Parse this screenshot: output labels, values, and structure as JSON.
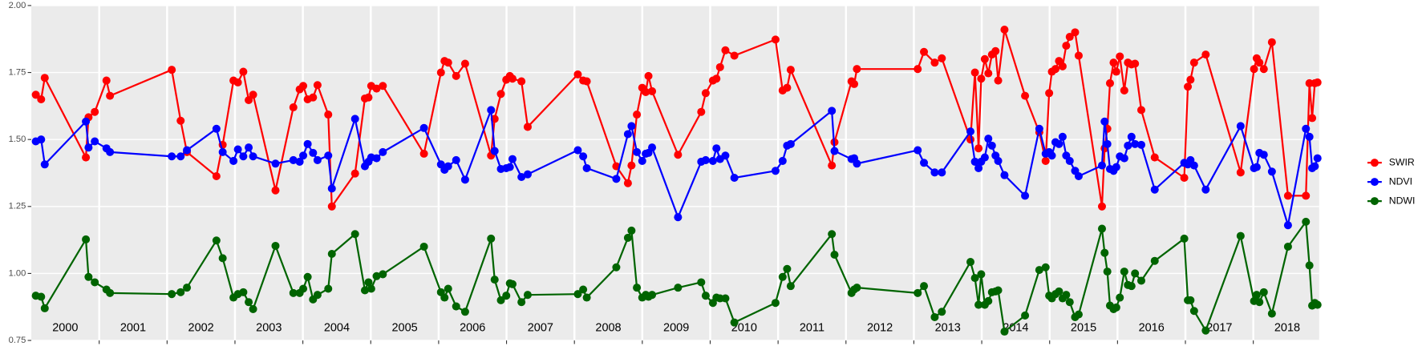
{
  "chart_data": {
    "type": "line",
    "x": [
      2000.066,
      2000.145,
      2000.198,
      2000.804,
      2000.843,
      2000.935,
      2001.107,
      2001.159,
      2002.069,
      2002.2,
      2002.292,
      2002.727,
      2002.819,
      2002.978,
      2003.043,
      2003.123,
      2003.202,
      2003.267,
      2003.597,
      2003.86,
      2003.953,
      2004.005,
      2004.071,
      2004.15,
      2004.216,
      2004.374,
      2004.427,
      2004.769,
      2004.914,
      2004.967,
      2005.007,
      2005.086,
      2005.178,
      2005.784,
      2006.034,
      2006.087,
      2006.14,
      2006.258,
      2006.39,
      2006.772,
      2006.825,
      2006.917,
      2006.996,
      2007.049,
      2007.088,
      2007.22,
      2007.312,
      2008.05,
      2008.129,
      2008.182,
      2008.617,
      2008.788,
      2008.841,
      2008.92,
      2008.999,
      2009.051,
      2009.091,
      2009.144,
      2009.526,
      2009.868,
      2009.934,
      2010.04,
      2010.092,
      2010.145,
      2010.224,
      2010.356,
      2010.962,
      2011.067,
      2011.133,
      2011.186,
      2011.792,
      2011.831,
      2012.082,
      2012.121,
      2012.161,
      2013.057,
      2013.149,
      2013.307,
      2013.412,
      2013.834,
      2013.9,
      2013.953,
      2013.992,
      2014.045,
      2014.097,
      2014.15,
      2014.203,
      2014.242,
      2014.335,
      2014.638,
      2014.848,
      2014.941,
      2014.993,
      2015.033,
      2015.086,
      2015.138,
      2015.191,
      2015.244,
      2015.296,
      2015.375,
      2015.428,
      2015.771,
      2015.81,
      2015.85,
      2015.889,
      2015.942,
      2015.982,
      2016.034,
      2016.1,
      2016.153,
      2016.206,
      2016.258,
      2016.35,
      2016.548,
      2016.983,
      2017.036,
      2017.075,
      2017.128,
      2017.299,
      2017.813,
      2018.011,
      2018.05,
      2018.09,
      2018.155,
      2018.274,
      2018.511,
      2018.775,
      2018.827,
      2018.867,
      2018.906,
      2018.946
    ],
    "series": [
      {
        "name": "SWIR",
        "color": "#ff0000",
        "values": [
          1.667,
          1.65,
          1.73,
          1.433,
          1.583,
          1.603,
          1.72,
          1.663,
          1.76,
          1.57,
          1.453,
          1.363,
          1.48,
          1.72,
          1.713,
          1.753,
          1.647,
          1.667,
          1.31,
          1.62,
          1.687,
          1.7,
          1.65,
          1.657,
          1.703,
          1.593,
          1.25,
          1.373,
          1.653,
          1.657,
          1.7,
          1.69,
          1.7,
          1.447,
          1.75,
          1.793,
          1.787,
          1.737,
          1.783,
          1.44,
          1.577,
          1.67,
          1.723,
          1.737,
          1.727,
          1.717,
          1.547,
          1.743,
          1.72,
          1.717,
          1.4,
          1.337,
          1.403,
          1.593,
          1.693,
          1.677,
          1.737,
          1.68,
          1.443,
          1.603,
          1.673,
          1.72,
          1.727,
          1.77,
          1.833,
          1.813,
          1.873,
          1.683,
          1.693,
          1.76,
          1.403,
          1.49,
          1.717,
          1.707,
          1.763,
          1.763,
          1.827,
          1.787,
          1.803,
          1.5,
          1.75,
          1.467,
          1.727,
          1.8,
          1.747,
          1.817,
          1.83,
          1.72,
          1.91,
          1.663,
          1.527,
          1.42,
          1.673,
          1.753,
          1.763,
          1.793,
          1.773,
          1.85,
          1.883,
          1.9,
          1.813,
          1.25,
          1.467,
          1.54,
          1.71,
          1.787,
          1.753,
          1.81,
          1.683,
          1.787,
          1.78,
          1.783,
          1.61,
          1.433,
          1.357,
          1.697,
          1.723,
          1.787,
          1.817,
          1.377,
          1.763,
          1.803,
          1.787,
          1.763,
          1.863,
          1.29,
          1.29,
          1.71,
          1.58,
          1.71,
          1.713
        ]
      },
      {
        "name": "NDVI",
        "color": "#0000ff",
        "values": [
          1.493,
          1.5,
          1.407,
          1.567,
          1.47,
          1.493,
          1.467,
          1.453,
          1.437,
          1.437,
          1.46,
          1.54,
          1.453,
          1.42,
          1.463,
          1.437,
          1.47,
          1.437,
          1.41,
          1.423,
          1.417,
          1.44,
          1.483,
          1.45,
          1.423,
          1.44,
          1.317,
          1.577,
          1.4,
          1.417,
          1.433,
          1.43,
          1.453,
          1.543,
          1.407,
          1.387,
          1.4,
          1.423,
          1.35,
          1.61,
          1.457,
          1.39,
          1.393,
          1.397,
          1.427,
          1.36,
          1.37,
          1.46,
          1.437,
          1.393,
          1.353,
          1.52,
          1.55,
          1.453,
          1.42,
          1.447,
          1.45,
          1.47,
          1.21,
          1.417,
          1.423,
          1.42,
          1.467,
          1.427,
          1.44,
          1.357,
          1.383,
          1.42,
          1.477,
          1.483,
          1.607,
          1.457,
          1.427,
          1.43,
          1.41,
          1.46,
          1.413,
          1.377,
          1.377,
          1.53,
          1.417,
          1.393,
          1.417,
          1.433,
          1.503,
          1.477,
          1.44,
          1.42,
          1.367,
          1.29,
          1.54,
          1.447,
          1.453,
          1.44,
          1.49,
          1.483,
          1.51,
          1.44,
          1.42,
          1.383,
          1.363,
          1.403,
          1.567,
          1.483,
          1.39,
          1.383,
          1.397,
          1.437,
          1.43,
          1.477,
          1.51,
          1.483,
          1.48,
          1.313,
          1.413,
          1.407,
          1.423,
          1.403,
          1.313,
          1.55,
          1.393,
          1.397,
          1.45,
          1.443,
          1.38,
          1.18,
          1.54,
          1.51,
          1.393,
          1.4,
          1.43
        ]
      },
      {
        "name": "NDWI",
        "color": "#006400",
        "values": [
          0.917,
          0.913,
          0.87,
          1.127,
          0.987,
          0.967,
          0.94,
          0.927,
          0.923,
          0.93,
          0.947,
          1.123,
          1.057,
          0.91,
          0.923,
          0.93,
          0.893,
          0.867,
          1.103,
          0.927,
          0.927,
          0.943,
          0.987,
          0.903,
          0.92,
          0.943,
          1.073,
          1.147,
          0.937,
          0.967,
          0.943,
          0.99,
          0.997,
          1.1,
          0.93,
          0.91,
          0.943,
          0.877,
          0.857,
          1.13,
          0.977,
          0.9,
          0.917,
          0.963,
          0.96,
          0.893,
          0.92,
          0.923,
          0.94,
          0.91,
          1.023,
          1.133,
          1.16,
          0.947,
          0.91,
          0.92,
          0.913,
          0.92,
          0.947,
          0.967,
          0.917,
          0.89,
          0.91,
          0.907,
          0.907,
          0.817,
          0.89,
          0.987,
          1.017,
          0.953,
          1.147,
          1.07,
          0.927,
          0.94,
          0.947,
          0.927,
          0.953,
          0.837,
          0.857,
          1.043,
          0.983,
          0.883,
          0.997,
          0.883,
          0.897,
          0.93,
          0.933,
          0.937,
          0.783,
          0.843,
          1.013,
          1.023,
          0.917,
          0.907,
          0.923,
          0.933,
          0.907,
          0.92,
          0.893,
          0.837,
          0.847,
          1.167,
          1.077,
          1.007,
          0.88,
          0.867,
          0.873,
          0.91,
          1.007,
          0.957,
          0.953,
          1.0,
          0.973,
          1.047,
          1.13,
          0.9,
          0.9,
          0.86,
          0.787,
          1.14,
          0.897,
          0.92,
          0.893,
          0.93,
          0.85,
          1.1,
          1.193,
          1.03,
          0.88,
          0.89,
          0.883
        ]
      }
    ],
    "xlim": [
      2000,
      2018.97
    ],
    "xticks": [
      {
        "value": 2000.5,
        "label": "2000"
      },
      {
        "value": 2001.5,
        "label": "2001"
      },
      {
        "value": 2002.5,
        "label": "2002"
      },
      {
        "value": 2003.5,
        "label": "2003"
      },
      {
        "value": 2004.5,
        "label": "2004"
      },
      {
        "value": 2005.5,
        "label": "2005"
      },
      {
        "value": 2006.5,
        "label": "2006"
      },
      {
        "value": 2007.5,
        "label": "2007"
      },
      {
        "value": 2008.5,
        "label": "2008"
      },
      {
        "value": 2009.5,
        "label": "2009"
      },
      {
        "value": 2010.5,
        "label": "2010"
      },
      {
        "value": 2011.5,
        "label": "2011"
      },
      {
        "value": 2012.5,
        "label": "2012"
      },
      {
        "value": 2013.5,
        "label": "2013"
      },
      {
        "value": 2014.5,
        "label": "2014"
      },
      {
        "value": 2015.5,
        "label": "2015"
      },
      {
        "value": 2016.5,
        "label": "2016"
      },
      {
        "value": 2017.5,
        "label": "2017"
      },
      {
        "value": 2018.5,
        "label": "2018"
      }
    ],
    "ylim": [
      0.75,
      2.0
    ],
    "yticks": [
      0.75,
      {
        "value": 1.0,
        "label": "1.00"
      },
      1.25,
      {
        "value": 1.5,
        "label": "1.50"
      },
      1.75,
      {
        "value": 2.0,
        "label": "2.00"
      }
    ],
    "grid": true,
    "legend": "right"
  }
}
